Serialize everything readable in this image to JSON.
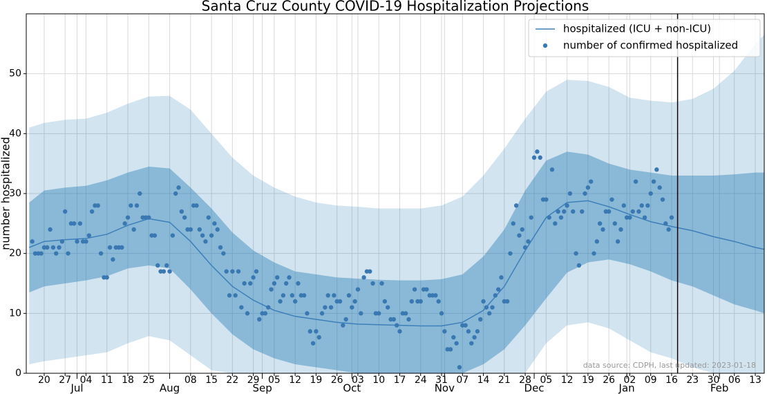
{
  "chart_data": {
    "type": "line",
    "title": "Santa Cruz County COVID-19 Hospitalization Projections",
    "ylabel": "number hospitalized",
    "annotation": "data source: CDPH, last updated: 2023-01-18",
    "vline": "2023-01-18",
    "xlim": [
      "2022-06-14",
      "2023-02-16"
    ],
    "ylim": [
      0,
      60
    ],
    "yticks": [
      0,
      10,
      20,
      30,
      40,
      50
    ],
    "grid": true,
    "legend": "upper right",
    "xticks": [
      {
        "value": "2022-06-20",
        "label": "20"
      },
      {
        "value": "2022-06-27",
        "label": "27"
      },
      {
        "value": "2022-07-04",
        "label": "04"
      },
      {
        "value": "2022-07-11",
        "label": "11"
      },
      {
        "value": "2022-07-18",
        "label": "18"
      },
      {
        "value": "2022-07-25",
        "label": "25"
      },
      {
        "value": "2022-08-08",
        "label": "08"
      },
      {
        "value": "2022-08-15",
        "label": "15"
      },
      {
        "value": "2022-08-22",
        "label": "22"
      },
      {
        "value": "2022-08-29",
        "label": "29"
      },
      {
        "value": "2022-09-05",
        "label": "05"
      },
      {
        "value": "2022-09-12",
        "label": "12"
      },
      {
        "value": "2022-09-19",
        "label": "19"
      },
      {
        "value": "2022-09-26",
        "label": "26"
      },
      {
        "value": "2022-10-03",
        "label": "03"
      },
      {
        "value": "2022-10-10",
        "label": "10"
      },
      {
        "value": "2022-10-17",
        "label": "17"
      },
      {
        "value": "2022-10-24",
        "label": "24"
      },
      {
        "value": "2022-10-31",
        "label": "31"
      },
      {
        "value": "2022-11-07",
        "label": "07"
      },
      {
        "value": "2022-11-14",
        "label": "14"
      },
      {
        "value": "2022-11-21",
        "label": "21"
      },
      {
        "value": "2022-11-28",
        "label": "28"
      },
      {
        "value": "2022-12-05",
        "label": "05"
      },
      {
        "value": "2022-12-12",
        "label": "12"
      },
      {
        "value": "2022-12-19",
        "label": "19"
      },
      {
        "value": "2022-12-26",
        "label": "26"
      },
      {
        "value": "2023-01-02",
        "label": "02"
      },
      {
        "value": "2023-01-09",
        "label": "09"
      },
      {
        "value": "2023-01-16",
        "label": "16"
      },
      {
        "value": "2023-01-23",
        "label": "23"
      },
      {
        "value": "2023-01-30",
        "label": "30"
      },
      {
        "value": "2023-02-06",
        "label": "06"
      },
      {
        "value": "2023-02-13",
        "label": "13"
      }
    ],
    "month_ticks": [
      {
        "value": "2022-07-01",
        "label": "Jul"
      },
      {
        "value": "2022-08-01",
        "label": "Aug"
      },
      {
        "value": "2022-09-01",
        "label": "Sep"
      },
      {
        "value": "2022-10-01",
        "label": "Oct"
      },
      {
        "value": "2022-11-01",
        "label": "Nov"
      },
      {
        "value": "2022-12-01",
        "label": "Dec"
      },
      {
        "value": "2023-01-01",
        "label": "Jan"
      },
      {
        "value": "2023-02-01",
        "label": "Feb"
      }
    ],
    "x": [
      "2022-06-15",
      "2022-06-20",
      "2022-06-27",
      "2022-07-04",
      "2022-07-11",
      "2022-07-18",
      "2022-07-25",
      "2022-08-01",
      "2022-08-08",
      "2022-08-15",
      "2022-08-22",
      "2022-08-29",
      "2022-09-05",
      "2022-09-12",
      "2022-09-19",
      "2022-09-26",
      "2022-10-03",
      "2022-10-10",
      "2022-10-17",
      "2022-10-24",
      "2022-10-31",
      "2022-11-07",
      "2022-11-14",
      "2022-11-21",
      "2022-11-28",
      "2022-12-05",
      "2022-12-12",
      "2022-12-19",
      "2022-12-26",
      "2023-01-02",
      "2023-01-09",
      "2023-01-16",
      "2023-01-23",
      "2023-01-30",
      "2023-02-06",
      "2023-02-13",
      "2023-02-16"
    ],
    "bands": [
      {
        "color": "rgba(31,119,180,0.2)",
        "lower": [
          1.5,
          2,
          2.5,
          3,
          3.5,
          5,
          6.2,
          5.5,
          3,
          0.5,
          0,
          0,
          0,
          0,
          0,
          0,
          0,
          0,
          0,
          0,
          0,
          0,
          0,
          0,
          0,
          5,
          8,
          8.5,
          7.5,
          5.5,
          3.5,
          2.5,
          1,
          0,
          0,
          0,
          0
        ],
        "upper": [
          41,
          41.8,
          42.3,
          42.5,
          43.5,
          45,
          46.2,
          46.3,
          44,
          40,
          36,
          33,
          31,
          29.5,
          28.5,
          28,
          27.8,
          27.5,
          27.5,
          27.5,
          28,
          29.5,
          33,
          37.5,
          42.5,
          47,
          49,
          48.8,
          47.8,
          46,
          45.5,
          45.2,
          45.8,
          47.5,
          50.5,
          55,
          56.5
        ]
      },
      {
        "color": "rgba(31,119,180,0.4)",
        "lower": [
          13.5,
          14.5,
          15,
          15.5,
          16.2,
          17.5,
          18,
          17.5,
          14,
          10,
          6.5,
          4,
          2.5,
          1.5,
          1,
          0.5,
          0,
          0,
          0,
          0,
          0,
          0,
          1.5,
          4,
          8,
          12.5,
          16.8,
          18.5,
          19,
          18.2,
          17,
          15.5,
          14.5,
          13,
          11.5,
          10.5,
          10
        ],
        "upper": [
          28.5,
          30.5,
          31,
          31.3,
          32.2,
          33.5,
          34.5,
          34.2,
          31,
          27.5,
          23.5,
          20.5,
          18.5,
          17,
          16.5,
          16,
          15.8,
          15.6,
          15.5,
          15.5,
          15.7,
          16.5,
          19.5,
          24,
          30.5,
          35.5,
          37,
          36.5,
          35,
          34,
          33.5,
          33,
          33,
          33,
          33.2,
          33.5,
          33.5
        ]
      }
    ],
    "series": [
      {
        "name": "hospitalized (ICU + non-ICU)",
        "type": "line",
        "color": "#3d7fb9",
        "values": [
          21,
          22,
          22.3,
          22.5,
          23.2,
          24.7,
          25.8,
          25.2,
          22,
          18,
          14.5,
          12.2,
          10.5,
          9.5,
          9,
          8.5,
          8.2,
          8.1,
          8,
          7.9,
          7.9,
          8.5,
          10.5,
          14.5,
          20.5,
          26,
          28.5,
          28.8,
          27.8,
          26.5,
          25.3,
          24.5,
          23.8,
          22.8,
          22,
          21,
          20.7
        ]
      },
      {
        "name": "number of confirmed hospitalized",
        "type": "scatter",
        "color": "#3a78b2",
        "x": [
          "2022-06-16",
          "2022-06-17",
          "2022-06-18",
          "2022-06-19",
          "2022-06-20",
          "2022-06-21",
          "2022-06-22",
          "2022-06-23",
          "2022-06-24",
          "2022-06-25",
          "2022-06-26",
          "2022-06-27",
          "2022-06-28",
          "2022-06-29",
          "2022-06-30",
          "2022-07-01",
          "2022-07-02",
          "2022-07-03",
          "2022-07-04",
          "2022-07-05",
          "2022-07-06",
          "2022-07-07",
          "2022-07-08",
          "2022-07-09",
          "2022-07-10",
          "2022-07-11",
          "2022-07-12",
          "2022-07-13",
          "2022-07-14",
          "2022-07-15",
          "2022-07-16",
          "2022-07-17",
          "2022-07-18",
          "2022-07-19",
          "2022-07-20",
          "2022-07-21",
          "2022-07-22",
          "2022-07-23",
          "2022-07-24",
          "2022-07-25",
          "2022-07-26",
          "2022-07-27",
          "2022-07-28",
          "2022-07-29",
          "2022-07-30",
          "2022-07-31",
          "2022-08-01",
          "2022-08-02",
          "2022-08-03",
          "2022-08-04",
          "2022-08-05",
          "2022-08-06",
          "2022-08-07",
          "2022-08-08",
          "2022-08-09",
          "2022-08-10",
          "2022-08-11",
          "2022-08-12",
          "2022-08-13",
          "2022-08-14",
          "2022-08-15",
          "2022-08-16",
          "2022-08-17",
          "2022-08-18",
          "2022-08-19",
          "2022-08-20",
          "2022-08-21",
          "2022-08-22",
          "2022-08-23",
          "2022-08-24",
          "2022-08-25",
          "2022-08-26",
          "2022-08-27",
          "2022-08-28",
          "2022-08-29",
          "2022-08-30",
          "2022-08-31",
          "2022-09-01",
          "2022-09-02",
          "2022-09-03",
          "2022-09-04",
          "2022-09-05",
          "2022-09-06",
          "2022-09-07",
          "2022-09-08",
          "2022-09-09",
          "2022-09-10",
          "2022-09-11",
          "2022-09-12",
          "2022-09-13",
          "2022-09-14",
          "2022-09-15",
          "2022-09-16",
          "2022-09-17",
          "2022-09-18",
          "2022-09-19",
          "2022-09-20",
          "2022-09-21",
          "2022-09-22",
          "2022-09-23",
          "2022-09-24",
          "2022-09-25",
          "2022-09-26",
          "2022-09-27",
          "2022-09-28",
          "2022-09-29",
          "2022-09-30",
          "2022-10-01",
          "2022-10-02",
          "2022-10-03",
          "2022-10-04",
          "2022-10-05",
          "2022-10-06",
          "2022-10-07",
          "2022-10-08",
          "2022-10-09",
          "2022-10-10",
          "2022-10-11",
          "2022-10-12",
          "2022-10-13",
          "2022-10-14",
          "2022-10-15",
          "2022-10-16",
          "2022-10-17",
          "2022-10-18",
          "2022-10-19",
          "2022-10-20",
          "2022-10-21",
          "2022-10-22",
          "2022-10-23",
          "2022-10-24",
          "2022-10-25",
          "2022-10-26",
          "2022-10-27",
          "2022-10-28",
          "2022-10-29",
          "2022-10-30",
          "2022-10-31",
          "2022-11-01",
          "2022-11-02",
          "2022-11-03",
          "2022-11-04",
          "2022-11-05",
          "2022-11-06",
          "2022-11-07",
          "2022-11-08",
          "2022-11-09",
          "2022-11-10",
          "2022-11-11",
          "2022-11-12",
          "2022-11-13",
          "2022-11-14",
          "2022-11-15",
          "2022-11-16",
          "2022-11-17",
          "2022-11-18",
          "2022-11-19",
          "2022-11-20",
          "2022-11-21",
          "2022-11-22",
          "2022-11-23",
          "2022-11-24",
          "2022-11-25",
          "2022-11-26",
          "2022-11-27",
          "2022-11-28",
          "2022-11-29",
          "2022-11-30",
          "2022-12-01",
          "2022-12-02",
          "2022-12-03",
          "2022-12-04",
          "2022-12-05",
          "2022-12-06",
          "2022-12-07",
          "2022-12-08",
          "2022-12-09",
          "2022-12-10",
          "2022-12-11",
          "2022-12-12",
          "2022-12-13",
          "2022-12-14",
          "2022-12-15",
          "2022-12-16",
          "2022-12-17",
          "2022-12-18",
          "2022-12-19",
          "2022-12-20",
          "2022-12-21",
          "2022-12-22",
          "2022-12-23",
          "2022-12-24",
          "2022-12-25",
          "2022-12-26",
          "2022-12-27",
          "2022-12-28",
          "2022-12-29",
          "2022-12-30",
          "2022-12-31",
          "2023-01-01",
          "2023-01-02",
          "2023-01-03",
          "2023-01-04",
          "2023-01-05",
          "2023-01-06",
          "2023-01-07",
          "2023-01-08",
          "2023-01-09",
          "2023-01-10",
          "2023-01-11",
          "2023-01-12",
          "2023-01-13",
          "2023-01-14",
          "2023-01-15",
          "2023-01-16"
        ],
        "values": [
          22,
          20,
          20,
          20,
          21,
          21,
          24,
          21,
          20,
          21,
          22,
          27,
          20,
          25,
          25,
          22,
          25,
          22,
          22,
          23,
          27,
          28,
          28,
          20,
          16,
          16,
          21,
          19,
          21,
          21,
          21,
          25,
          26,
          28,
          24,
          28,
          30,
          26,
          26,
          26,
          23,
          23,
          18,
          17,
          17,
          18,
          17,
          23,
          30,
          31,
          27,
          26,
          24,
          24,
          28,
          28,
          24,
          23,
          22,
          26,
          23,
          25,
          24,
          21,
          20,
          17,
          13,
          17,
          13,
          17,
          11,
          15,
          10,
          15,
          16,
          17,
          9,
          10,
          10,
          11,
          14,
          15,
          16,
          12,
          13,
          15,
          16,
          13,
          12,
          15,
          13,
          13,
          10,
          7,
          5,
          7,
          6,
          10,
          11,
          13,
          11,
          13,
          12,
          12,
          8,
          9,
          13,
          11,
          12,
          14,
          10,
          16,
          17,
          17,
          15,
          10,
          10,
          15,
          12,
          11,
          9,
          9,
          8,
          7,
          10,
          10,
          9,
          12,
          14,
          12,
          12,
          14,
          14,
          13,
          13,
          13,
          12,
          10,
          7,
          4,
          4,
          6,
          5,
          1,
          8,
          8,
          7,
          5,
          6,
          7,
          9,
          12,
          11,
          10,
          11,
          13,
          14,
          16,
          12,
          12,
          20,
          25,
          28,
          23,
          24,
          21,
          22,
          26,
          36,
          37,
          36,
          29,
          29,
          26,
          34,
          25,
          27,
          26,
          27,
          28,
          30,
          27,
          20,
          18,
          27,
          30,
          31,
          32,
          20,
          22,
          25,
          24,
          27,
          27,
          29,
          25,
          22,
          24,
          28,
          26,
          26,
          27,
          32,
          27,
          28,
          26,
          28,
          30,
          32,
          34,
          31,
          29,
          25,
          24,
          26
        ]
      }
    ]
  }
}
